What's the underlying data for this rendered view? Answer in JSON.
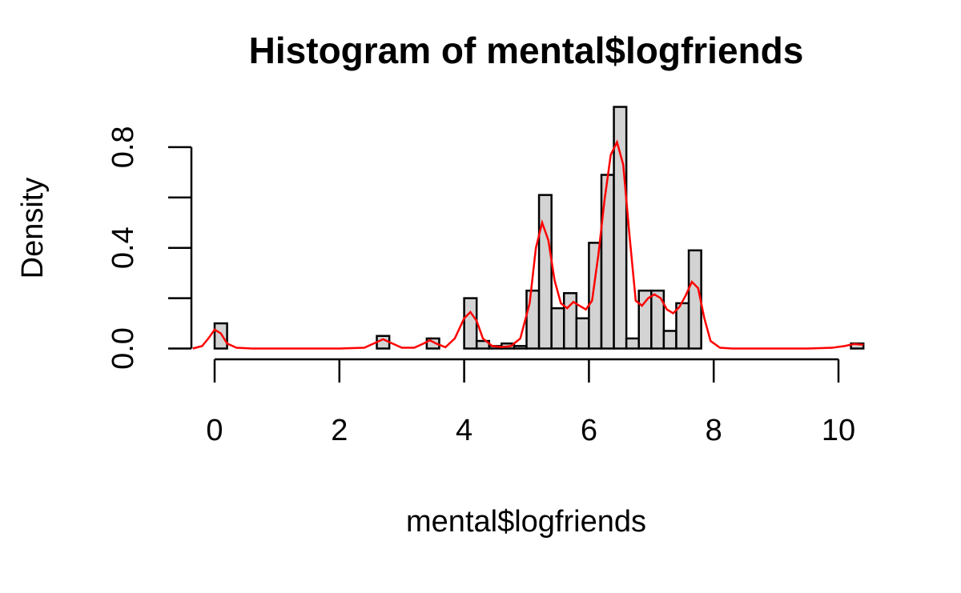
{
  "chart_data": {
    "type": "bar",
    "title": "Histogram of mental$logfriends",
    "xlabel": "mental$logfriends",
    "ylabel": "Density",
    "xlim": [
      -0.35,
      10.4
    ],
    "ylim": [
      0,
      0.96
    ],
    "x_ticks": [
      "0",
      "2",
      "4",
      "6",
      "8",
      "10"
    ],
    "x_tick_values": [
      0,
      2,
      4,
      6,
      8,
      10
    ],
    "y_ticks": [
      "0.0",
      "0.4",
      "0.8"
    ],
    "y_tick_values": [
      0.0,
      0.4,
      0.8
    ],
    "bin_width": 0.2,
    "bins": [
      {
        "start": 0.0,
        "density": 0.1
      },
      {
        "start": 2.6,
        "density": 0.05
      },
      {
        "start": 3.4,
        "density": 0.04
      },
      {
        "start": 4.0,
        "density": 0.2
      },
      {
        "start": 4.2,
        "density": 0.03
      },
      {
        "start": 4.4,
        "density": 0.01
      },
      {
        "start": 4.6,
        "density": 0.02
      },
      {
        "start": 4.8,
        "density": 0.01
      },
      {
        "start": 5.0,
        "density": 0.23
      },
      {
        "start": 5.2,
        "density": 0.61
      },
      {
        "start": 5.4,
        "density": 0.16
      },
      {
        "start": 5.6,
        "density": 0.22
      },
      {
        "start": 5.8,
        "density": 0.12
      },
      {
        "start": 6.0,
        "density": 0.42
      },
      {
        "start": 6.2,
        "density": 0.69
      },
      {
        "start": 6.4,
        "density": 0.96
      },
      {
        "start": 6.6,
        "density": 0.04
      },
      {
        "start": 6.8,
        "density": 0.23
      },
      {
        "start": 7.0,
        "density": 0.23
      },
      {
        "start": 7.2,
        "density": 0.07
      },
      {
        "start": 7.4,
        "density": 0.18
      },
      {
        "start": 7.6,
        "density": 0.39
      },
      {
        "start": 10.2,
        "density": 0.02
      }
    ],
    "density_curve": {
      "color": "#ff0000",
      "x": [
        -0.35,
        -0.2,
        -0.1,
        0.0,
        0.1,
        0.2,
        0.35,
        0.6,
        1.0,
        1.5,
        2.0,
        2.4,
        2.55,
        2.7,
        2.85,
        3.0,
        3.2,
        3.35,
        3.45,
        3.55,
        3.7,
        3.85,
        4.0,
        4.1,
        4.2,
        4.3,
        4.45,
        4.6,
        4.75,
        4.9,
        5.05,
        5.15,
        5.25,
        5.35,
        5.45,
        5.55,
        5.65,
        5.75,
        5.85,
        5.95,
        6.05,
        6.15,
        6.25,
        6.35,
        6.45,
        6.55,
        6.65,
        6.75,
        6.85,
        6.95,
        7.05,
        7.15,
        7.25,
        7.35,
        7.45,
        7.55,
        7.65,
        7.75,
        7.85,
        7.95,
        8.1,
        8.3,
        8.6,
        9.0,
        9.5,
        9.9,
        10.1,
        10.25,
        10.4
      ],
      "y": [
        0.0,
        0.01,
        0.04,
        0.075,
        0.06,
        0.02,
        0.003,
        0.0,
        0.0,
        0.0,
        0.0,
        0.003,
        0.02,
        0.037,
        0.02,
        0.003,
        0.003,
        0.02,
        0.033,
        0.02,
        0.005,
        0.04,
        0.12,
        0.145,
        0.11,
        0.04,
        0.01,
        0.006,
        0.01,
        0.04,
        0.18,
        0.4,
        0.5,
        0.43,
        0.27,
        0.18,
        0.16,
        0.185,
        0.17,
        0.155,
        0.19,
        0.37,
        0.59,
        0.77,
        0.82,
        0.73,
        0.45,
        0.19,
        0.17,
        0.2,
        0.215,
        0.2,
        0.155,
        0.14,
        0.165,
        0.21,
        0.265,
        0.24,
        0.12,
        0.03,
        0.003,
        0.0,
        0.0,
        0.0,
        0.0,
        0.003,
        0.01,
        0.018,
        0.015
      ]
    },
    "grid": false,
    "legend": "none"
  }
}
